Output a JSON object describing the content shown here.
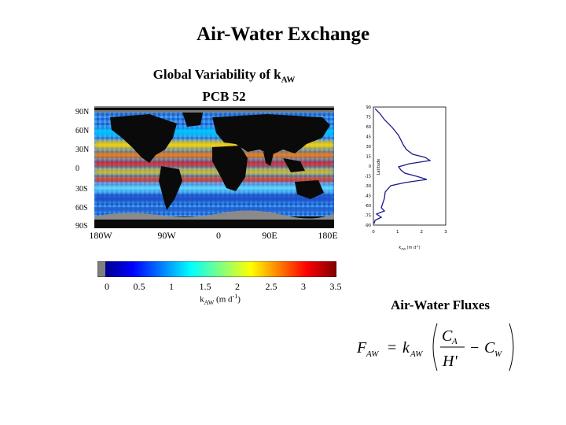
{
  "slide": {
    "title": "Air-Water Exchange",
    "subtitle_line1_prefix": "Global Variability of k",
    "subtitle_line1_sub": "AW",
    "subtitle_line2": "PCB 52"
  },
  "map": {
    "lat_labels": [
      "90N",
      "60N",
      "30N",
      "0",
      "30S",
      "60S",
      "90S"
    ],
    "lon_labels": [
      "180W",
      "90W",
      "0",
      "90E",
      "180E"
    ]
  },
  "colorbar": {
    "ticks": [
      "0",
      "0.5",
      "1",
      "1.5",
      "2",
      "2.5",
      "3",
      "3.5"
    ],
    "unit_prefix": "k",
    "unit_sub": "AW",
    "unit_suffix": " (m d",
    "unit_sup": "-1",
    "unit_close": ")",
    "colors": [
      "#7f7f7f",
      "#00008f",
      "#0000ff",
      "#0080ff",
      "#00ffff",
      "#80ff80",
      "#ffff00",
      "#ff8000",
      "#ff0000",
      "#800000"
    ]
  },
  "profile": {
    "y_ticks": [
      "90",
      "75",
      "60",
      "45",
      "30",
      "15",
      "0",
      "-15",
      "-30",
      "-45",
      "-60",
      "-75",
      "-90"
    ],
    "x_ticks": [
      "0",
      "1",
      "2",
      "3"
    ],
    "ylabel": "Latitude",
    "xlabel_prefix": "k",
    "xlabel_sub": "AW",
    "xlabel_suffix": " (m d",
    "xlabel_sup": "-1",
    "xlabel_close": ")",
    "line_color": "#1a1a8c"
  },
  "fluxes": {
    "heading": "Air-Water Fluxes",
    "F": "F",
    "F_sub": "AW",
    "equals": "=",
    "k": "k",
    "k_sub": "AW",
    "C_A": "C",
    "C_A_sub": "A",
    "H": "H'",
    "minus": "−",
    "C_W": "C",
    "C_W_sub": "W"
  }
}
